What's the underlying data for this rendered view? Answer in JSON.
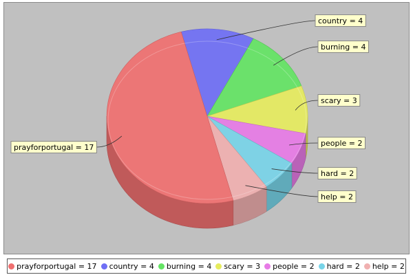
{
  "chart_data": {
    "type": "pie",
    "style": "3d",
    "title": "",
    "legend_position": "bottom",
    "slices": [
      {
        "label": "country",
        "value": 4,
        "color": "#6f6ff5",
        "callout": "country = 4",
        "legend": "country = 4"
      },
      {
        "label": "burning",
        "value": 4,
        "color": "#64e464",
        "callout": "burning = 4",
        "legend": "burning = 4"
      },
      {
        "label": "scary",
        "value": 3,
        "color": "#e6ec5e",
        "callout": "scary = 3",
        "legend": "scary = 3"
      },
      {
        "label": "people",
        "value": 2,
        "color": "#e77be6",
        "callout": "people = 2",
        "legend": "people = 2"
      },
      {
        "label": "hard",
        "value": 2,
        "color": "#78d4e8",
        "callout": "hard = 2",
        "legend": "hard = 2"
      },
      {
        "label": "help",
        "value": 2,
        "color": "#f0b0b0",
        "callout": "help = 2",
        "legend": "help = 2"
      },
      {
        "label": "prayforportugal",
        "value": 17,
        "color": "#f07070",
        "callout": "prayforportugal = 17",
        "legend": "prayforportugal = 17"
      }
    ],
    "legend_order": [
      "prayforportugal",
      "country",
      "burning",
      "scary",
      "people",
      "hard",
      "help"
    ]
  },
  "colors": {
    "plot_background": "#c0c0c0",
    "legend_background": "#ffffff"
  }
}
